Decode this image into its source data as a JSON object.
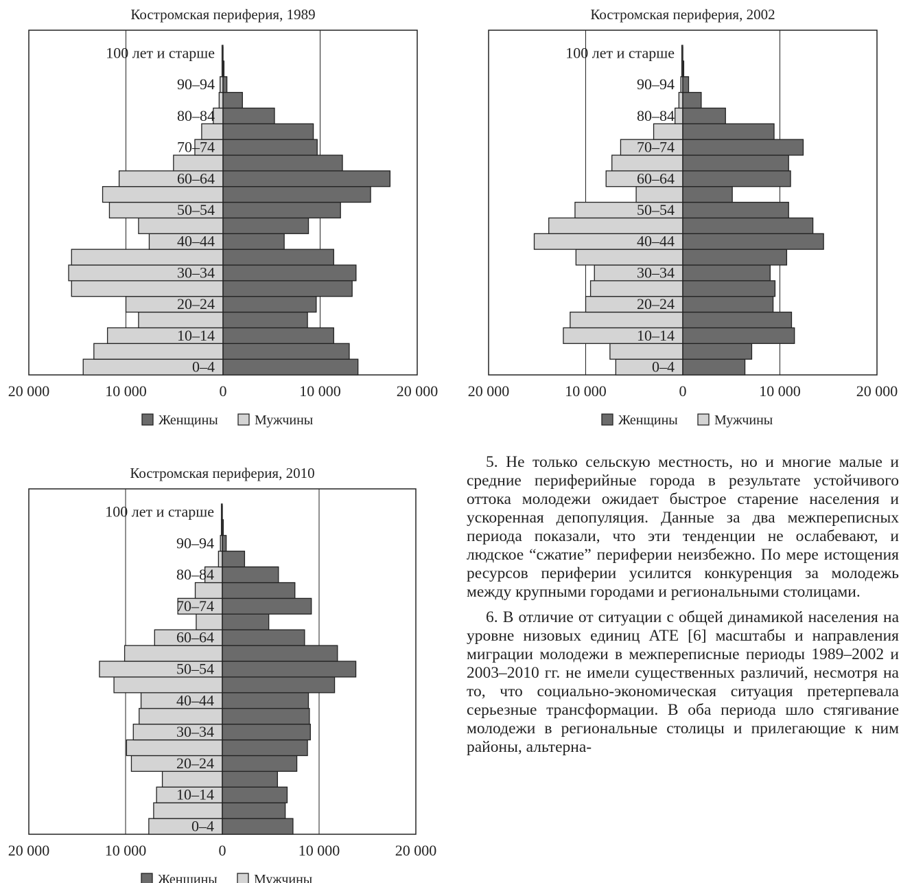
{
  "colors": {
    "women": "#6b6b6b",
    "men": "#d4d4d4",
    "stroke": "#222222"
  },
  "legend": {
    "women": "Женщины",
    "men": "Мужчины"
  },
  "age_groups": [
    "0–4",
    "5–9",
    "10–14",
    "15–19",
    "20–24",
    "25–29",
    "30–34",
    "35–39",
    "40–44",
    "45–49",
    "50–54",
    "55–59",
    "60–64",
    "65–69",
    "70–74",
    "75–79",
    "80–84",
    "85–89",
    "90–94",
    "95–99",
    "100 лет и старше"
  ],
  "visible_age_labels": [
    "0–4",
    "10–14",
    "20–24",
    "30–34",
    "40–44",
    "50–54",
    "60–64",
    "70–74",
    "80–84",
    "90–94",
    "100 лет и старше"
  ],
  "x_tick_labels": [
    "20 000",
    "10 000",
    "0",
    "10 000",
    "20 000"
  ],
  "chart_data": [
    {
      "type": "bar",
      "orientation": "population-pyramid",
      "title": "Костромская периферия, 1989",
      "xlim": [
        -20000,
        20000
      ],
      "categories": [
        "0–4",
        "5–9",
        "10–14",
        "15–19",
        "20–24",
        "25–29",
        "30–34",
        "35–39",
        "40–44",
        "45–49",
        "50–54",
        "55–59",
        "60–64",
        "65–69",
        "70–74",
        "75–79",
        "80–84",
        "85–89",
        "90–94",
        "95–99",
        "100 лет и старше"
      ],
      "series": [
        {
          "name": "Мужчины",
          "values": [
            14400,
            13300,
            11900,
            8700,
            10000,
            15600,
            15900,
            15600,
            7600,
            8700,
            11700,
            12400,
            10700,
            5100,
            2900,
            2200,
            1000,
            400,
            300,
            100,
            100
          ]
        },
        {
          "name": "Женщины",
          "values": [
            13900,
            13000,
            11400,
            8700,
            9600,
            13300,
            13700,
            11400,
            6300,
            8800,
            12100,
            15200,
            17200,
            12300,
            9700,
            9300,
            5300,
            2000,
            400,
            100,
            0
          ]
        }
      ]
    },
    {
      "type": "bar",
      "orientation": "population-pyramid",
      "title": "Костромская периферия, 2002",
      "xlim": [
        -20000,
        20000
      ],
      "categories": [
        "0–4",
        "5–9",
        "10–14",
        "15–19",
        "20–24",
        "25–29",
        "30–34",
        "35–39",
        "40–44",
        "45–49",
        "50–54",
        "55–59",
        "60–64",
        "65–69",
        "70–74",
        "75–79",
        "80–84",
        "85–89",
        "90–94",
        "95–99",
        "100 лет и старше"
      ],
      "series": [
        {
          "name": "Мужчины",
          "values": [
            6900,
            7500,
            12300,
            11600,
            10000,
            9500,
            9100,
            11000,
            15300,
            13800,
            11100,
            4800,
            7900,
            7300,
            6400,
            3000,
            800,
            400,
            200,
            100,
            100
          ]
        },
        {
          "name": "Женщины",
          "values": [
            6400,
            7100,
            11500,
            11200,
            9300,
            9500,
            9000,
            10700,
            14500,
            13400,
            10900,
            5100,
            11100,
            10900,
            12400,
            9400,
            4400,
            1900,
            600,
            100,
            0
          ]
        }
      ]
    },
    {
      "type": "bar",
      "orientation": "population-pyramid",
      "title": "Костромская периферия, 2010",
      "xlim": [
        -20000,
        20000
      ],
      "categories": [
        "0–4",
        "5–9",
        "10–14",
        "15–19",
        "20–24",
        "25–29",
        "30–34",
        "35–39",
        "40–44",
        "45–49",
        "50–54",
        "55–59",
        "60–64",
        "65–69",
        "70–74",
        "75–79",
        "80–84",
        "85–89",
        "90–94",
        "95–99",
        "100 лет и старше"
      ],
      "series": [
        {
          "name": "Мужчины",
          "values": [
            7600,
            7100,
            6800,
            6200,
            9400,
            9900,
            9200,
            8600,
            8400,
            11200,
            12700,
            10100,
            7000,
            2700,
            4600,
            2800,
            1800,
            400,
            200,
            100,
            100
          ]
        },
        {
          "name": "Женщины",
          "values": [
            7300,
            6500,
            6700,
            5700,
            7700,
            8800,
            9100,
            9000,
            8900,
            11600,
            13800,
            11900,
            8500,
            4800,
            9200,
            7500,
            5800,
            2300,
            400,
            100,
            0
          ]
        }
      ]
    }
  ],
  "article": {
    "p5": "5. Не только сельскую местность, но и многие малые и средние периферийные города в результате устойчивого оттока молодежи ожидает быстрое старение населения и ускоренная депопуляция. Данные за два межпереписных периода показали, что эти тенденции не ослабевают, и людское “сжатие” периферии неизбежно. По мере истощения ресурсов периферии усилится конкуренция за молодежь между крупными городами и региональными столицами.",
    "p6": "6. В отличие от ситуации с общей динамикой населения на уровне низовых единиц АТЕ [6] масштабы и направления миграции молодежи в межпереписные периоды 1989–2002 и 2003–2010 гг. не имели существенных различий, несмотря на то, что социально-экономическая ситуация претерпевала серьезные трансформации. В оба периода шло стягивание молодежи в региональные столицы и прилегающие к ним районы, альтерна-"
  }
}
